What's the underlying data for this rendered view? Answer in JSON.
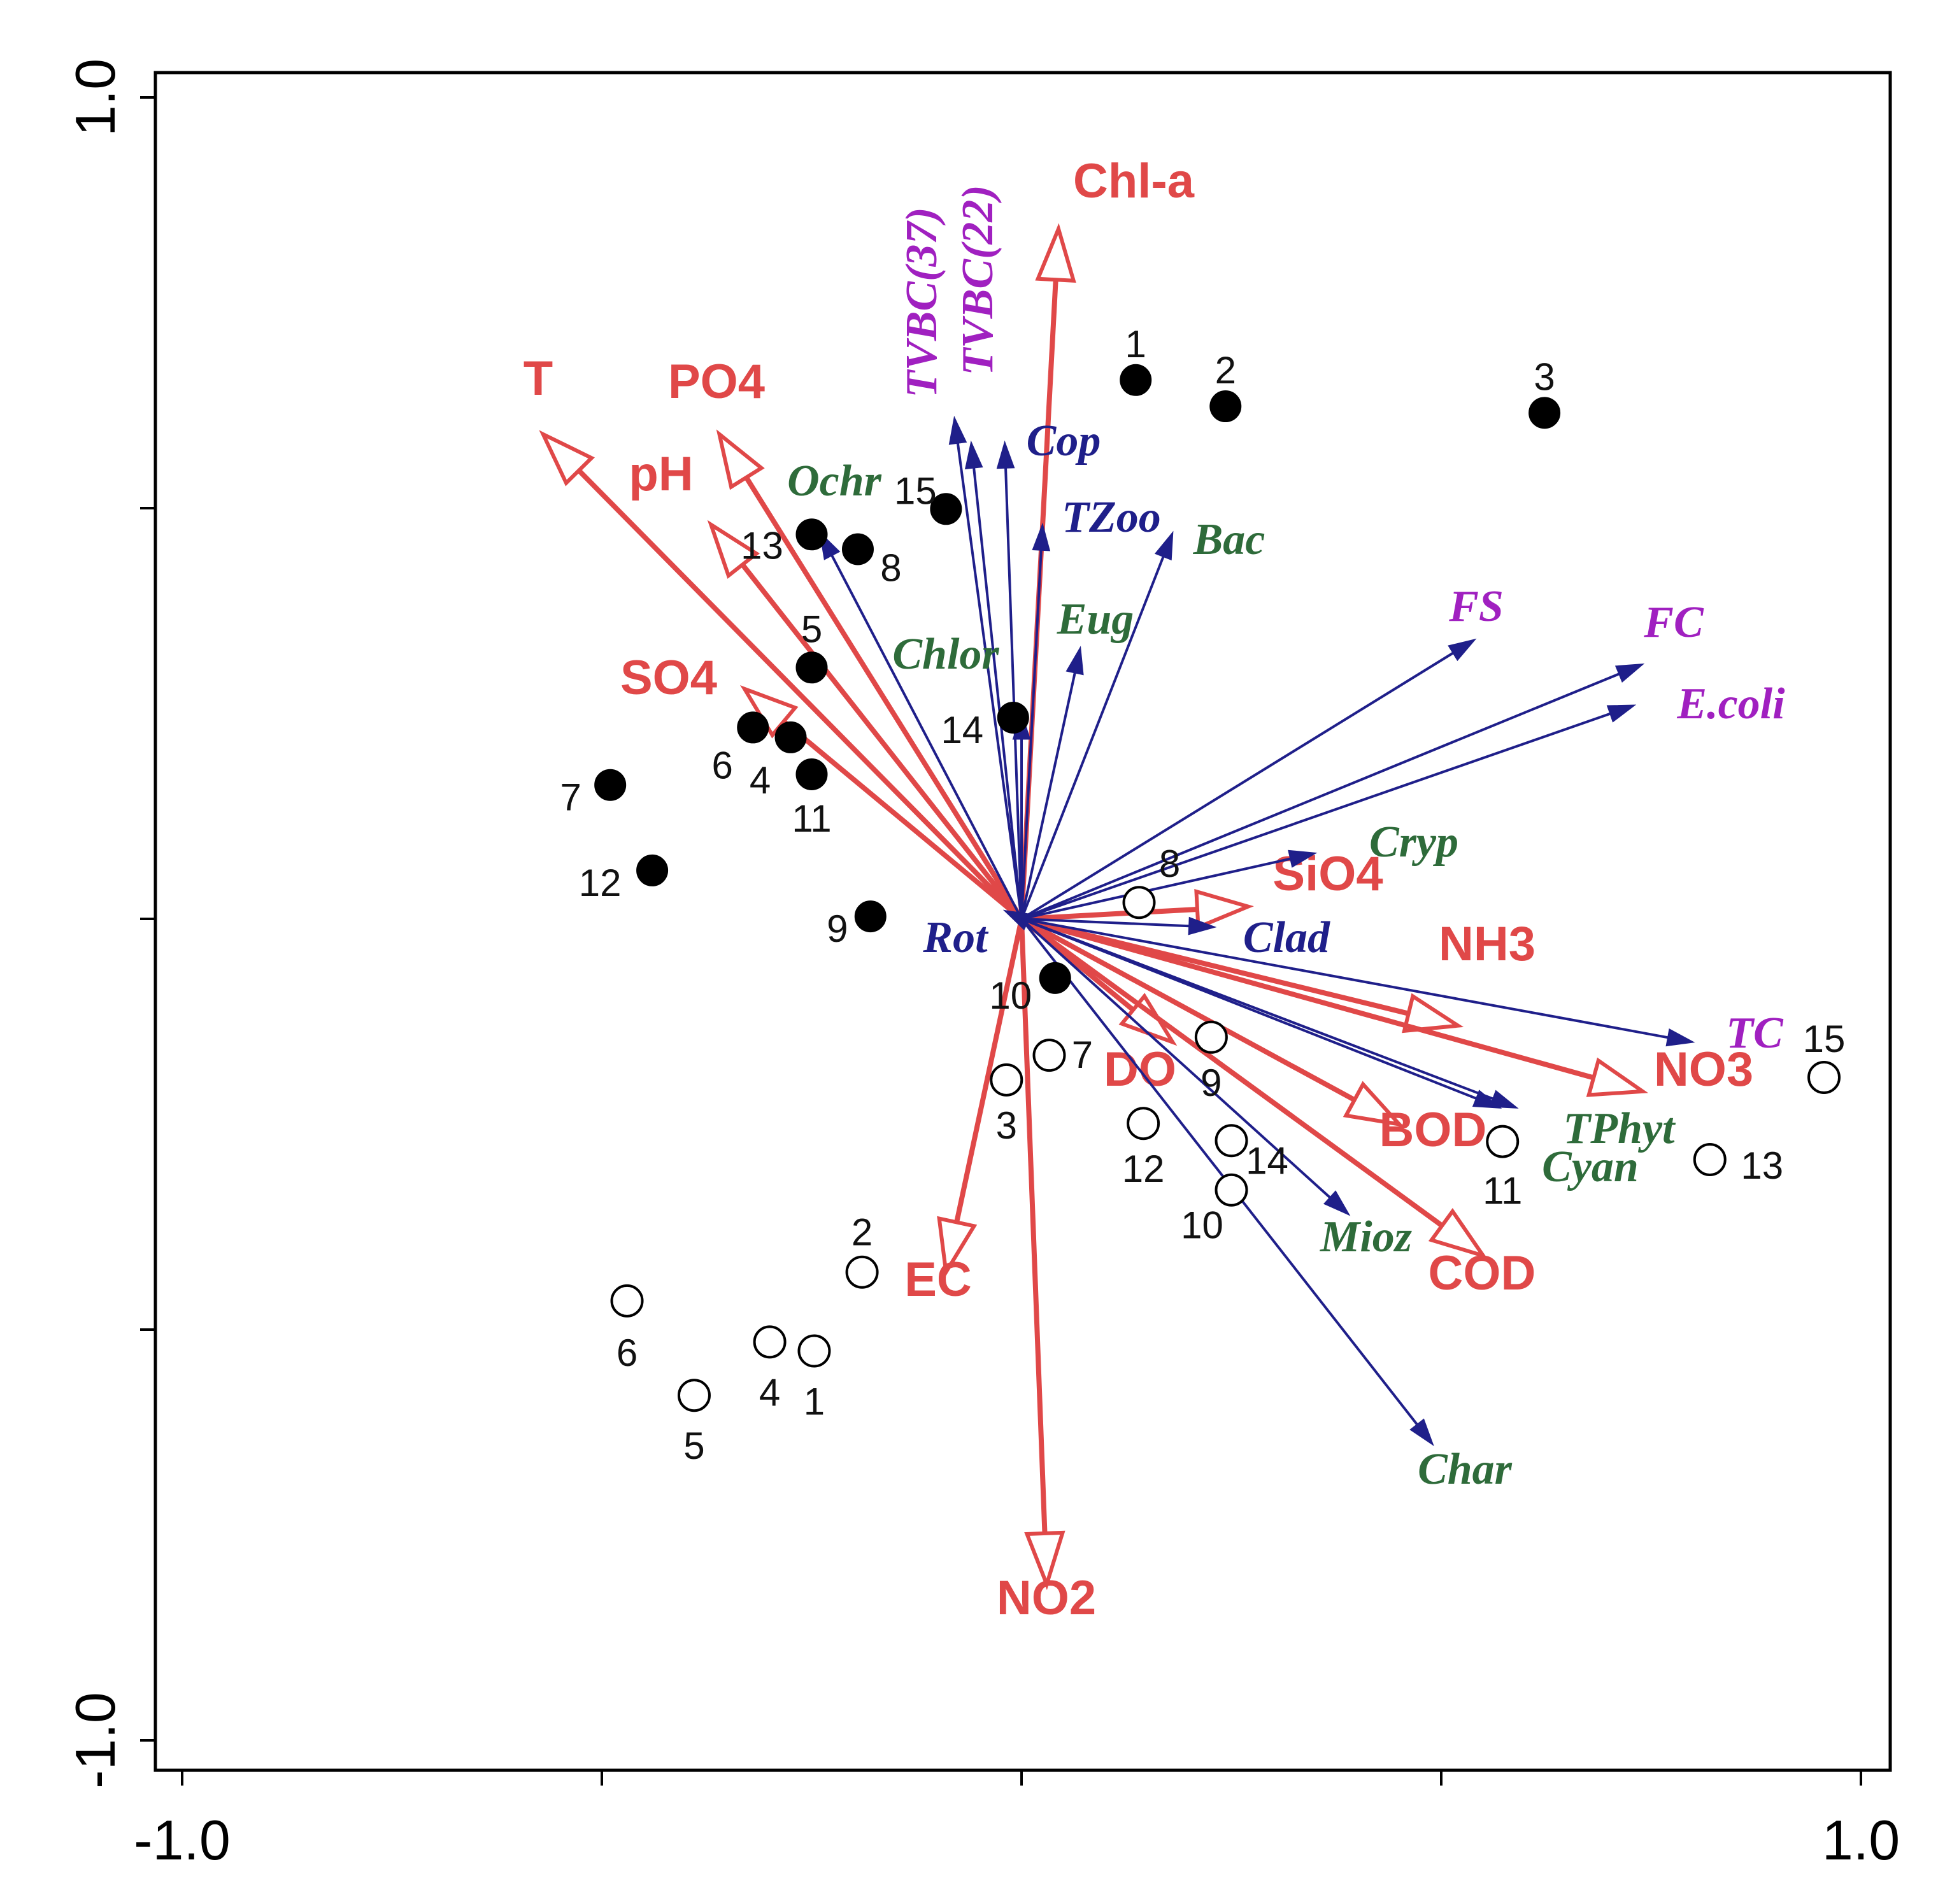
{
  "chart_data": {
    "type": "scatter",
    "subtype": "rda-biplot",
    "title": "",
    "xlim": [
      -1.0,
      1.0
    ],
    "ylim": [
      -1.0,
      1.0
    ],
    "x_tick_labels": [
      {
        "value": -1.0,
        "label": "-1.0"
      },
      {
        "value": 1.0,
        "label": "1.0"
      }
    ],
    "y_tick_labels": [
      {
        "value": 1.0,
        "label": "1.0"
      },
      {
        "value": -1.0,
        "label": "-1.0"
      }
    ],
    "minor_ticks": [
      -1.0,
      -0.5,
      0.0,
      0.5,
      1.0
    ],
    "colors": {
      "env": "#e04848",
      "bio": "#1f1f8a",
      "bio_label_blue": "#1f1f8a",
      "bio_label_green": "#2e6b3a",
      "bio_label_purple": "#a020c0",
      "site": "#000000"
    },
    "env_vectors": [
      {
        "name": "Chl-a",
        "x": 0.044,
        "y": 0.84
      },
      {
        "name": "T",
        "x": -0.57,
        "y": 0.59
      },
      {
        "name": "PO4",
        "x": -0.36,
        "y": 0.59
      },
      {
        "name": "pH",
        "x": -0.37,
        "y": 0.48
      },
      {
        "name": "SO4",
        "x": -0.33,
        "y": 0.28
      },
      {
        "name": "SiO4",
        "x": 0.27,
        "y": 0.015
      },
      {
        "name": "NH3",
        "x": 0.52,
        "y": -0.13
      },
      {
        "name": "NO3",
        "x": 0.74,
        "y": -0.21
      },
      {
        "name": "DO",
        "x": 0.18,
        "y": -0.15
      },
      {
        "name": "BOD",
        "x": 0.45,
        "y": -0.25
      },
      {
        "name": "COD",
        "x": 0.55,
        "y": -0.41
      },
      {
        "name": "EC",
        "x": -0.09,
        "y": -0.43
      },
      {
        "name": "NO2",
        "x": 0.03,
        "y": -0.81
      }
    ],
    "bio_vectors": [
      {
        "name": "TVBC(37)",
        "x": -0.08,
        "y": 0.61,
        "group": "purple"
      },
      {
        "name": "TVBC(22)",
        "x": -0.06,
        "y": 0.58,
        "group": "purple"
      },
      {
        "name": "Cop",
        "x": -0.02,
        "y": 0.58,
        "group": "blue"
      },
      {
        "name": "TZoo",
        "x": 0.025,
        "y": 0.48,
        "group": "blue"
      },
      {
        "name": "Bac",
        "x": 0.18,
        "y": 0.47,
        "group": "green"
      },
      {
        "name": "Eug",
        "x": 0.07,
        "y": 0.33,
        "group": "green"
      },
      {
        "name": "Ochr",
        "x": -0.24,
        "y": 0.47,
        "group": "green"
      },
      {
        "name": "Chlor",
        "x": 0.0,
        "y": 0.25,
        "group": "green"
      },
      {
        "name": "FS",
        "x": 0.54,
        "y": 0.34,
        "group": "purple"
      },
      {
        "name": "FC",
        "x": 0.74,
        "y": 0.31,
        "group": "purple"
      },
      {
        "name": "E.coli",
        "x": 0.73,
        "y": 0.26,
        "group": "purple"
      },
      {
        "name": "Cryp",
        "x": 0.35,
        "y": 0.08,
        "group": "green"
      },
      {
        "name": "Clad",
        "x": 0.23,
        "y": -0.01,
        "group": "blue"
      },
      {
        "name": "Rot",
        "x": -0.02,
        "y": 0.01,
        "group": "blue"
      },
      {
        "name": "TC",
        "x": 0.8,
        "y": -0.15,
        "group": "purple"
      },
      {
        "name": "TPhyt",
        "x": 0.59,
        "y": -0.23,
        "group": "green"
      },
      {
        "name": "Cyan",
        "x": 0.57,
        "y": -0.23,
        "group": "green"
      },
      {
        "name": "Mioz",
        "x": 0.39,
        "y": -0.36,
        "group": "green"
      },
      {
        "name": "Char",
        "x": 0.49,
        "y": -0.64,
        "group": "green"
      }
    ],
    "sites_filled": [
      {
        "label": "1",
        "x": 0.136,
        "y": 0.656
      },
      {
        "label": "2",
        "x": 0.243,
        "y": 0.624
      },
      {
        "label": "3",
        "x": 0.623,
        "y": 0.616
      },
      {
        "label": "15",
        "x": -0.09,
        "y": 0.499
      },
      {
        "label": "13",
        "x": -0.25,
        "y": 0.468
      },
      {
        "label": "8",
        "x": -0.195,
        "y": 0.45
      },
      {
        "label": "5",
        "x": -0.25,
        "y": 0.306
      },
      {
        "label": "6",
        "x": -0.32,
        "y": 0.233
      },
      {
        "label": "4",
        "x": -0.275,
        "y": 0.221
      },
      {
        "label": "11",
        "x": -0.25,
        "y": 0.176
      },
      {
        "label": "14",
        "x": -0.01,
        "y": 0.245
      },
      {
        "label": "7",
        "x": -0.49,
        "y": 0.163
      },
      {
        "label": "12",
        "x": -0.44,
        "y": 0.059
      },
      {
        "label": "9",
        "x": -0.18,
        "y": 0.003
      },
      {
        "label": "10",
        "x": 0.04,
        "y": -0.072
      }
    ],
    "sites_open": [
      {
        "label": "8",
        "x": 0.14,
        "y": 0.02
      },
      {
        "label": "7",
        "x": 0.033,
        "y": -0.166
      },
      {
        "label": "3",
        "x": -0.018,
        "y": -0.196
      },
      {
        "label": "9",
        "x": 0.226,
        "y": -0.144
      },
      {
        "label": "12",
        "x": 0.145,
        "y": -0.249
      },
      {
        "label": "14",
        "x": 0.25,
        "y": -0.27
      },
      {
        "label": "10",
        "x": 0.25,
        "y": -0.33
      },
      {
        "label": "11",
        "x": 0.573,
        "y": -0.271
      },
      {
        "label": "13",
        "x": 0.82,
        "y": -0.293
      },
      {
        "label": "15",
        "x": 0.956,
        "y": -0.193
      },
      {
        "label": "2",
        "x": -0.19,
        "y": -0.43
      },
      {
        "label": "6",
        "x": -0.47,
        "y": -0.465
      },
      {
        "label": "4",
        "x": -0.3,
        "y": -0.515
      },
      {
        "label": "1",
        "x": -0.247,
        "y": -0.526
      },
      {
        "label": "5",
        "x": -0.39,
        "y": -0.58
      }
    ]
  }
}
